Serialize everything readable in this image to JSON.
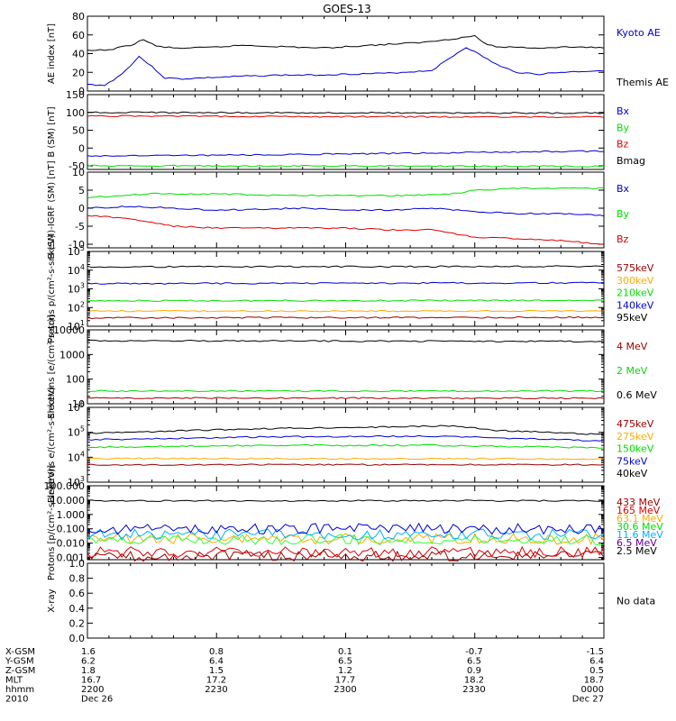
{
  "title": "GOES-13",
  "colors": {
    "black": "#000000",
    "blue": "#0000d0",
    "green": "#00dd00",
    "red": "#dd0000",
    "darkred": "#990000",
    "orange": "#ffaa00",
    "lime": "#00dd00",
    "cyan": "#00b0ff",
    "purple": "#660099",
    "brightgreen": "#33ff33"
  },
  "chart_data": [
    {
      "type": "line",
      "ylabel": "AE index [nT]",
      "ylim": [
        0,
        80
      ],
      "scale": "linear",
      "ticks": [
        0,
        20,
        40,
        60,
        80
      ],
      "tick_labels": [
        "0",
        "20",
        "40",
        "60",
        "80"
      ],
      "legend": [
        {
          "name": "Kyoto AE",
          "color": "#0000d0"
        },
        {
          "name": "Themis AE",
          "color": "#000000"
        }
      ],
      "series": [
        {
          "name": "Kyoto AE",
          "color": "#0000d0",
          "x": [
            0,
            4,
            8,
            12,
            15,
            18,
            22,
            27,
            32,
            38,
            45,
            52,
            60,
            70,
            80,
            88,
            96,
            100,
            105,
            110,
            115,
            120
          ],
          "values": [
            7,
            6,
            18,
            37,
            26,
            14,
            13,
            14,
            15,
            16,
            17,
            17,
            18,
            19,
            22,
            47,
            26,
            20,
            18,
            20,
            21,
            22
          ]
        },
        {
          "name": "Themis AE",
          "color": "#000000",
          "x": [
            0,
            5,
            10,
            13,
            16,
            20,
            25,
            30,
            36,
            42,
            48,
            55,
            62,
            70,
            78,
            85,
            90,
            93,
            96,
            100,
            105,
            110,
            115,
            120
          ],
          "values": [
            43,
            44,
            49,
            55,
            48,
            46,
            46,
            47,
            49,
            48,
            47,
            46,
            48,
            50,
            52,
            56,
            59,
            49,
            47,
            47,
            46,
            47,
            47,
            46
          ]
        }
      ]
    },
    {
      "type": "line",
      "ylabel": "B (SM) [nT]",
      "ylim": [
        -60,
        150
      ],
      "scale": "linear",
      "ticks": [
        -50,
        0,
        50,
        100,
        150
      ],
      "tick_labels": [
        "-50",
        "0",
        "50",
        "100",
        "150"
      ],
      "legend": [
        {
          "name": "Bx",
          "color": "#0000d0"
        },
        {
          "name": "By",
          "color": "#00dd00"
        },
        {
          "name": "Bz",
          "color": "#dd0000"
        },
        {
          "name": "Bmag",
          "color": "#000000"
        }
      ],
      "series": [
        {
          "name": "Bx",
          "color": "#0000d0",
          "x": [
            0,
            40,
            80,
            120
          ],
          "values": [
            -22,
            -19,
            -14,
            -8
          ]
        },
        {
          "name": "By",
          "color": "#00dd00",
          "x": [
            0,
            120
          ],
          "values": [
            -50,
            -51
          ]
        },
        {
          "name": "Bz",
          "color": "#dd0000",
          "x": [
            0,
            60,
            120
          ],
          "values": [
            90,
            88,
            87
          ]
        },
        {
          "name": "Bmag",
          "color": "#000000",
          "x": [
            0,
            60,
            120
          ],
          "values": [
            100,
            99,
            98
          ]
        }
      ]
    },
    {
      "type": "line",
      "ylabel": "B (SM)-IGRF (SM) [nT]",
      "ylim": [
        -11,
        10
      ],
      "scale": "linear",
      "ticks": [
        -10,
        -5,
        0,
        5,
        10
      ],
      "tick_labels": [
        "-10",
        "-5",
        "0",
        "5",
        "10"
      ],
      "legend": [
        {
          "name": "Bx",
          "color": "#0000d0"
        },
        {
          "name": "By",
          "color": "#00dd00"
        },
        {
          "name": "Bz",
          "color": "#dd0000"
        }
      ],
      "series": [
        {
          "name": "Bx",
          "color": "#0000d0",
          "x": [
            0,
            10,
            20,
            30,
            40,
            50,
            60,
            70,
            80,
            90,
            100,
            110,
            120
          ],
          "values": [
            0,
            0.5,
            0,
            -0.5,
            -0.3,
            0,
            -0.5,
            -0.5,
            0,
            -1,
            -1.5,
            -1.5,
            -2
          ]
        },
        {
          "name": "By",
          "color": "#00dd00",
          "x": [
            0,
            15,
            30,
            45,
            60,
            75,
            85,
            90,
            100,
            110,
            120
          ],
          "values": [
            3,
            4,
            4,
            3.5,
            3.5,
            3.5,
            4,
            5,
            5.5,
            5.5,
            5.5
          ]
        },
        {
          "name": "Bz",
          "color": "#dd0000",
          "x": [
            0,
            10,
            15,
            20,
            30,
            40,
            50,
            60,
            70,
            80,
            85,
            90,
            100,
            110,
            120
          ],
          "values": [
            -2,
            -3,
            -4,
            -5,
            -5.5,
            -5.5,
            -5.5,
            -5.5,
            -6,
            -6,
            -7,
            -8,
            -8.5,
            -9,
            -10
          ]
        }
      ]
    },
    {
      "type": "line",
      "ylabel": "Protons p/(cm²-s-sr-keV)",
      "ylim": [
        10,
        100000
      ],
      "scale": "log",
      "ticks": [
        10,
        100,
        1000,
        10000,
        100000
      ],
      "tick_labels": [
        [
          "10",
          "1"
        ],
        [
          "10",
          "2"
        ],
        [
          "10",
          "3"
        ],
        [
          "10",
          "4"
        ],
        [
          "10",
          "5"
        ]
      ],
      "legend": [
        {
          "name": "575keV",
          "color": "#990000"
        },
        {
          "name": "300keV",
          "color": "#ffaa00"
        },
        {
          "name": "210keV",
          "color": "#00dd00"
        },
        {
          "name": "140keV",
          "color": "#0000d0"
        },
        {
          "name": "95keV",
          "color": "#000000"
        }
      ],
      "series": [
        {
          "name": "575keV",
          "color": "#990000",
          "x": [
            0,
            120
          ],
          "values": [
            28,
            30
          ]
        },
        {
          "name": "300keV",
          "color": "#ffaa00",
          "x": [
            0,
            120
          ],
          "values": [
            65,
            65
          ]
        },
        {
          "name": "210keV",
          "color": "#00dd00",
          "x": [
            0,
            120
          ],
          "values": [
            230,
            240
          ]
        },
        {
          "name": "140keV",
          "color": "#0000d0",
          "x": [
            0,
            120
          ],
          "values": [
            1900,
            2100
          ]
        },
        {
          "name": "95keV",
          "color": "#000000",
          "x": [
            0,
            120
          ],
          "values": [
            15000,
            16000
          ]
        }
      ]
    },
    {
      "type": "line",
      "ylabel": "Electrons [e/(cm²-s-sr)]",
      "ylim": [
        10,
        10000
      ],
      "scale": "log",
      "ticks": [
        10,
        100,
        1000,
        10000
      ],
      "tick_labels": [
        "10",
        "100",
        "1000",
        "10000"
      ],
      "legend": [
        {
          "name": "4 MeV",
          "color": "#990000"
        },
        {
          "name": "2 MeV",
          "color": "#00dd00"
        },
        {
          "name": "0.6 MeV",
          "color": "#000000"
        }
      ],
      "series": [
        {
          "name": "4 MeV",
          "color": "#990000",
          "x": [
            0,
            120
          ],
          "values": [
            17,
            17
          ]
        },
        {
          "name": "2 MeV",
          "color": "#00dd00",
          "x": [
            0,
            120
          ],
          "values": [
            33,
            33
          ]
        },
        {
          "name": "0.6 MeV",
          "color": "#000000",
          "x": [
            0,
            120
          ],
          "values": [
            3600,
            3400
          ]
        }
      ]
    },
    {
      "type": "line",
      "ylabel": "Electrons e/(cm²-s-sr-keV)",
      "ylim": [
        1000,
        1000000
      ],
      "scale": "log",
      "ticks": [
        1000,
        10000,
        100000,
        1000000
      ],
      "tick_labels": [
        [
          "10",
          "3"
        ],
        [
          "10",
          "4"
        ],
        [
          "10",
          "5"
        ],
        [
          "10",
          "6"
        ]
      ],
      "legend": [
        {
          "name": "475keV",
          "color": "#990000"
        },
        {
          "name": "275keV",
          "color": "#ffaa00"
        },
        {
          "name": "150keV",
          "color": "#00dd00"
        },
        {
          "name": "75keV",
          "color": "#0000d0"
        },
        {
          "name": "40keV",
          "color": "#000000"
        }
      ],
      "series": [
        {
          "name": "475keV",
          "color": "#990000",
          "x": [
            0,
            120
          ],
          "values": [
            5000,
            5000
          ]
        },
        {
          "name": "275keV",
          "color": "#ffaa00",
          "x": [
            0,
            120
          ],
          "values": [
            9000,
            8500
          ]
        },
        {
          "name": "150keV",
          "color": "#00dd00",
          "x": [
            0,
            40,
            80,
            120
          ],
          "values": [
            25000,
            30000,
            30000,
            24000
          ]
        },
        {
          "name": "75keV",
          "color": "#0000d0",
          "x": [
            0,
            40,
            80,
            120
          ],
          "values": [
            50000,
            65000,
            70000,
            45000
          ]
        },
        {
          "name": "40keV",
          "color": "#000000",
          "x": [
            0,
            40,
            85,
            95,
            120
          ],
          "values": [
            90000,
            140000,
            180000,
            120000,
            80000
          ]
        }
      ]
    },
    {
      "type": "line",
      "ylabel": "Protons [p/(cm²-s-sr-keV)]",
      "ylim": [
        0.0007,
        100
      ],
      "scale": "log",
      "ticks": [
        0.001,
        0.01,
        0.1,
        1,
        10,
        100
      ],
      "tick_labels": [
        "0.001",
        "0.010",
        "0.100",
        "1.000",
        "10.000",
        "100.000"
      ],
      "legend": [
        {
          "name": "433 MeV",
          "color": "#990000"
        },
        {
          "name": "165 MeV",
          "color": "#dd0000"
        },
        {
          "name": "63.1 MeV",
          "color": "#ffaa00"
        },
        {
          "name": "30.6 MeV",
          "color": "#00dd00"
        },
        {
          "name": "11.6 MeV",
          "color": "#00b0ff"
        },
        {
          "name": "6.5 MeV",
          "color": "#660099"
        },
        {
          "name": "2.5 MeV",
          "color": "#000000"
        }
      ],
      "series": [
        {
          "name": "433 MeV",
          "color": "#990000",
          "x": [
            0,
            120
          ],
          "values": [
            0.0013,
            0.0013
          ],
          "noisy": true
        },
        {
          "name": "165 MeV",
          "color": "#dd0000",
          "x": [
            0,
            120
          ],
          "values": [
            0.0024,
            0.0024
          ],
          "noisy": true
        },
        {
          "name": "63.1 MeV",
          "color": "#ffaa00",
          "x": [
            0,
            120
          ],
          "values": [
            0.02,
            0.02
          ],
          "noisy": true
        },
        {
          "name": "30.6 MeV",
          "color": "#33ff33",
          "x": [
            0,
            120
          ],
          "values": [
            0.018,
            0.018
          ],
          "noisy": true
        },
        {
          "name": "11.6 MeV",
          "color": "#00b0ff",
          "x": [
            0,
            120
          ],
          "values": [
            0.04,
            0.04
          ],
          "noisy": true
        },
        {
          "name": "6.5 MeV",
          "color": "#0000d0",
          "x": [
            0,
            120
          ],
          "values": [
            0.1,
            0.1
          ],
          "noisy": true
        },
        {
          "name": "2.5 MeV",
          "color": "#000000",
          "x": [
            0,
            120
          ],
          "values": [
            9,
            9
          ]
        }
      ]
    },
    {
      "type": "line",
      "ylabel": "X-ray",
      "ylim": [
        0,
        1
      ],
      "scale": "linear",
      "ticks": [
        0,
        0.2,
        0.4,
        0.6,
        0.8,
        1.0
      ],
      "tick_labels": [
        "0.0",
        "0.2",
        "0.4",
        "0.6",
        "0.8",
        "1.0"
      ],
      "legend": [],
      "no_data_text": "No data",
      "series": []
    }
  ],
  "xaxis": {
    "range_minutes": [
      0,
      120
    ],
    "rows": [
      {
        "label": "X-GSM",
        "values": [
          "1.6",
          "0.8",
          "0.1",
          "-0.7",
          "-1.5"
        ]
      },
      {
        "label": "Y-GSM",
        "values": [
          "6.2",
          "6.4",
          "6.5",
          "6.5",
          "6.4"
        ]
      },
      {
        "label": "Z-GSM",
        "values": [
          "1.8",
          "1.5",
          "1.2",
          "0.9",
          "0.5"
        ]
      },
      {
        "label": "MLT",
        "values": [
          "16.7",
          "17.2",
          "17.7",
          "18.2",
          "18.7"
        ]
      },
      {
        "label": "hhmm",
        "values": [
          "2200",
          "2230",
          "2300",
          "2330",
          "0000"
        ]
      },
      {
        "label": "2010",
        "values": [
          "Dec 26",
          "",
          "",
          "",
          "Dec 27"
        ]
      }
    ]
  }
}
